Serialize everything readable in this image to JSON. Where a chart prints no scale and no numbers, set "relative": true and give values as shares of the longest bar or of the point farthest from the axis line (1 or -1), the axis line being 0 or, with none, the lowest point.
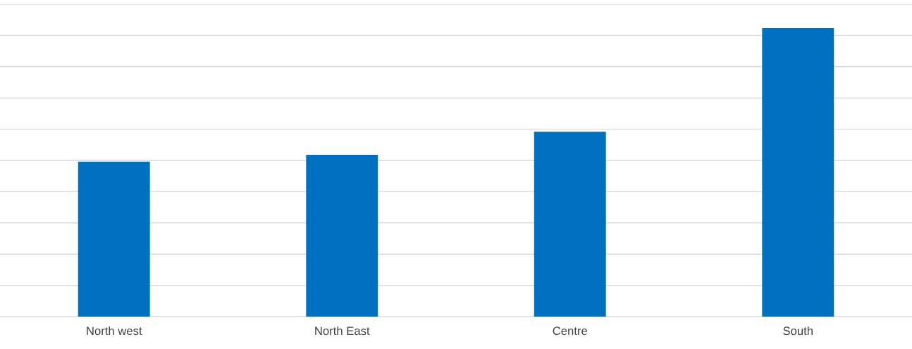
{
  "chart_data": {
    "type": "bar",
    "relative": true,
    "categories": [
      "North west",
      "North East",
      "Centre",
      "South"
    ],
    "values": [
      0.537,
      0.561,
      0.641,
      1
    ],
    "color": "#0070c0",
    "grid": "y",
    "tick_labels": "x"
  }
}
